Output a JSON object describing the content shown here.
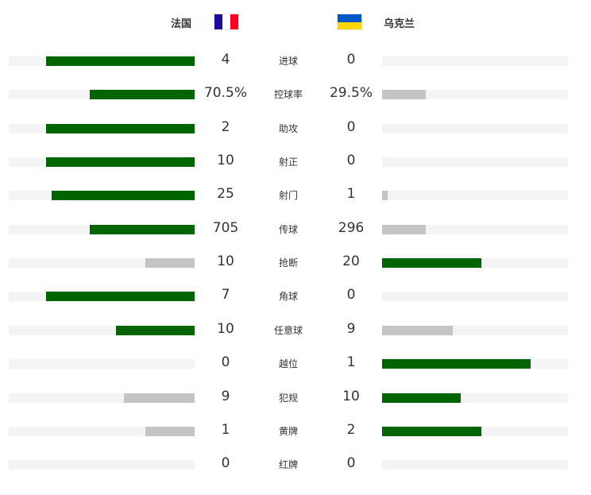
{
  "header": {
    "home": {
      "name": "法国",
      "flag": "france-flag",
      "colors": [
        "#1b0b9a",
        "#ffffff",
        "#ff0022"
      ]
    },
    "away": {
      "name": "乌克兰",
      "flag": "ukraine-flag",
      "colors": [
        "#0057c8",
        "#ffd700"
      ]
    }
  },
  "colors": {
    "leader": "#006400",
    "trailer": "#c4c4c4",
    "track": "#f4f4f4"
  },
  "stats": [
    {
      "label": "进球",
      "home": "4",
      "away": "0",
      "hv": 4,
      "av": 0
    },
    {
      "label": "控球率",
      "home": "70.5%",
      "away": "29.5%",
      "hv": 70.5,
      "av": 29.5
    },
    {
      "label": "助攻",
      "home": "2",
      "away": "0",
      "hv": 2,
      "av": 0
    },
    {
      "label": "射正",
      "home": "10",
      "away": "0",
      "hv": 10,
      "av": 0
    },
    {
      "label": "射门",
      "home": "25",
      "away": "1",
      "hv": 25,
      "av": 1
    },
    {
      "label": "传球",
      "home": "705",
      "away": "296",
      "hv": 705,
      "av": 296
    },
    {
      "label": "抢断",
      "home": "10",
      "away": "20",
      "hv": 10,
      "av": 20
    },
    {
      "label": "角球",
      "home": "7",
      "away": "0",
      "hv": 7,
      "av": 0
    },
    {
      "label": "任意球",
      "home": "10",
      "away": "9",
      "hv": 10,
      "av": 9
    },
    {
      "label": "越位",
      "home": "0",
      "away": "1",
      "hv": 0,
      "av": 1
    },
    {
      "label": "犯规",
      "home": "9",
      "away": "10",
      "hv": 9,
      "av": 10
    },
    {
      "label": "黄牌",
      "home": "1",
      "away": "2",
      "hv": 1,
      "av": 2
    },
    {
      "label": "红牌",
      "home": "0",
      "away": "0",
      "hv": 0,
      "av": 0
    }
  ]
}
